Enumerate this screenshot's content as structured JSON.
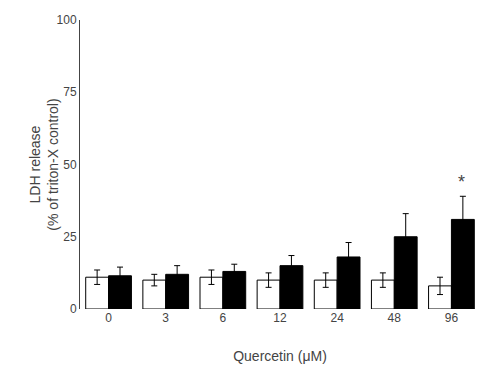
{
  "chart_data": {
    "type": "bar",
    "categories": [
      "0",
      "3",
      "6",
      "12",
      "24",
      "48",
      "96"
    ],
    "series": [
      {
        "color": "#ffffff",
        "values": [
          11.0,
          10.0,
          11.0,
          10.0,
          10.0,
          10.0,
          8.0
        ],
        "errors": [
          2.5,
          2.0,
          2.5,
          2.5,
          2.5,
          2.5,
          3.0
        ]
      },
      {
        "color": "#000000",
        "values": [
          11.5,
          12.0,
          13.0,
          15.0,
          18.0,
          25.0,
          31.0
        ],
        "errors": [
          3.0,
          3.0,
          2.5,
          3.5,
          5.0,
          8.0,
          8.0
        ]
      }
    ],
    "xlabel": "Quercetin (μM)",
    "ylabel": "LDH release\n(% of triton-X control)",
    "ylim": [
      0,
      100
    ],
    "yticks": [
      0,
      25,
      50,
      75,
      100
    ],
    "grid": false,
    "annotations": [
      {
        "text": "*",
        "x": "96",
        "series": 1
      }
    ]
  }
}
